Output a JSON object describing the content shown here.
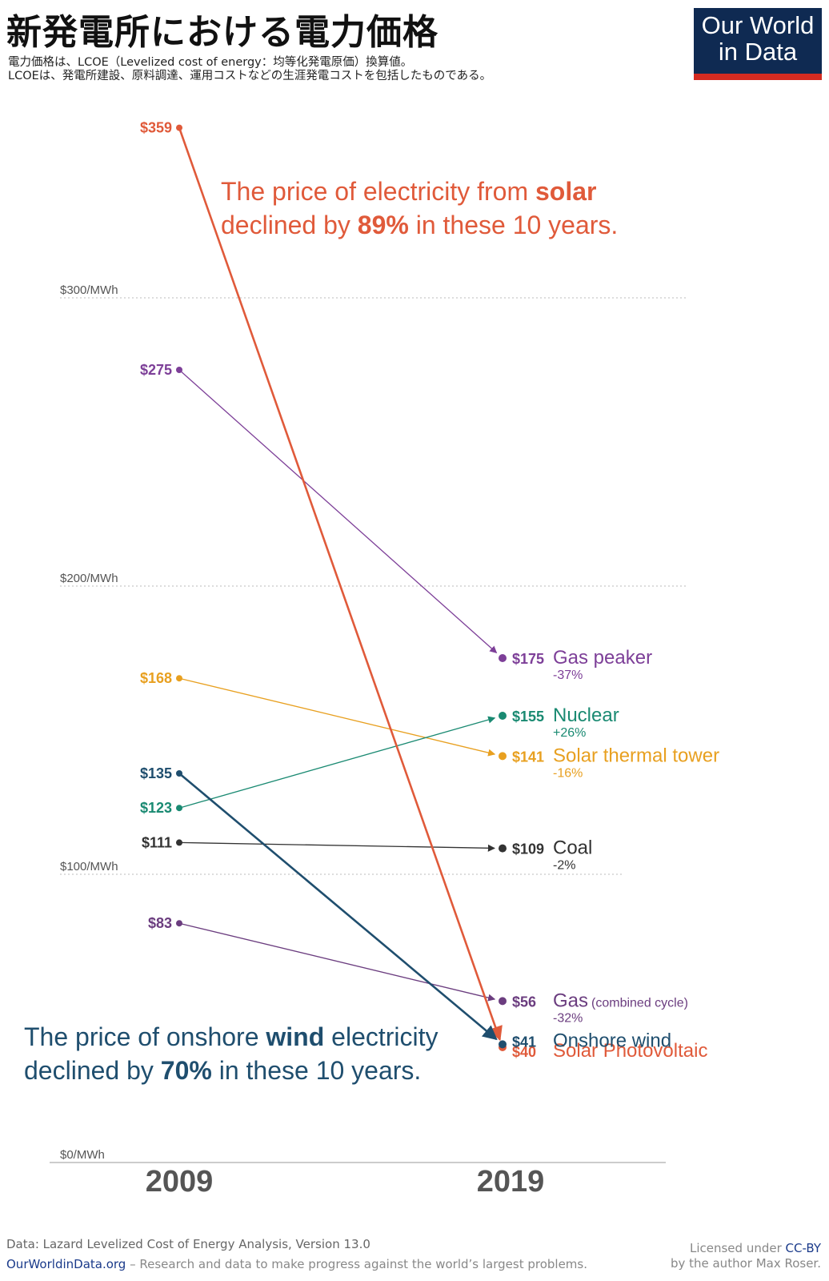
{
  "title": "新発電所における電力価格",
  "subtitle": {
    "line1": "電力価格は、LCOE（Levelized cost of energy：均等化発電原価）換算値。",
    "line2": "LCOEは、発電所建設、原料調達、運用コストなどの生涯発電コストを包括したものである。"
  },
  "logo": {
    "line1": "Our World",
    "line2": "in Data"
  },
  "chart_data": {
    "type": "line",
    "title": "新発電所における電力価格",
    "unit": "$/MWh",
    "x": [
      "2009",
      "2019"
    ],
    "y_ticks": [
      "$300/MWh",
      "$200/MWh",
      "$100/MWh",
      "$0/MWh"
    ],
    "y_tick_values": [
      300,
      200,
      100,
      0
    ],
    "ylim": [
      0,
      400
    ],
    "series": [
      {
        "name": "Solar Photovoltaic",
        "v2009": 359,
        "v2019": 40,
        "label2009": "$359",
        "label2019": "$40",
        "change": "",
        "color": "#e05a3a",
        "bold": true
      },
      {
        "name": "Gas peaker",
        "v2009": 275,
        "v2019": 175,
        "label2009": "$275",
        "label2019": "$175",
        "change": "-37%",
        "color": "#7d3f98",
        "bold": false
      },
      {
        "name": "Solar thermal tower",
        "v2009": 168,
        "v2019": 141,
        "label2009": "$168",
        "label2019": "$141",
        "change": "-16%",
        "color": "#e8a020",
        "bold": false
      },
      {
        "name": "Nuclear",
        "v2009": 123,
        "v2019": 155,
        "label2009": "$123",
        "label2019": "$155",
        "change": "+26%",
        "color": "#1a8a72",
        "bold": false
      },
      {
        "name": "Onshore wind",
        "v2009": 135,
        "v2019": 41,
        "label2009": "$135",
        "label2019": "$41",
        "change": "",
        "color": "#1f4e6e",
        "bold": true
      },
      {
        "name": "Coal",
        "v2009": 111,
        "v2019": 109,
        "label2009": "$111",
        "label2019": "$109",
        "change": "-2%",
        "color": "#333333",
        "bold": false
      },
      {
        "name": "Gas",
        "name_suffix": "(combined cycle)",
        "v2009": 83,
        "v2019": 56,
        "label2009": "$83",
        "label2019": "$56",
        "change": "-32%",
        "color": "#6b3d7f",
        "bold": false
      }
    ],
    "annotations": {
      "solar": {
        "prefix": "The price of electricity from ",
        "bold1": "solar",
        "line2a": "declined by ",
        "bold2": "89%",
        "line2b": " in these 10 years.",
        "color": "#e05a3a"
      },
      "wind": {
        "prefix": "The price of onshore ",
        "bold1": "wind",
        "suffix1": " electricity",
        "line2a": "declined by ",
        "bold2": "70%",
        "line2b": " in these 10 years.",
        "color": "#1f4e6e"
      }
    }
  },
  "footer": {
    "source": "Data: Lazard Levelized Cost of Energy Analysis, Version 13.0",
    "site": "OurWorldinData.org",
    "tagline": " – Research and data to make progress against the world’s largest problems.",
    "license_prefix": "Licensed under ",
    "license": "CC-BY",
    "author": "by the author Max Roser."
  }
}
